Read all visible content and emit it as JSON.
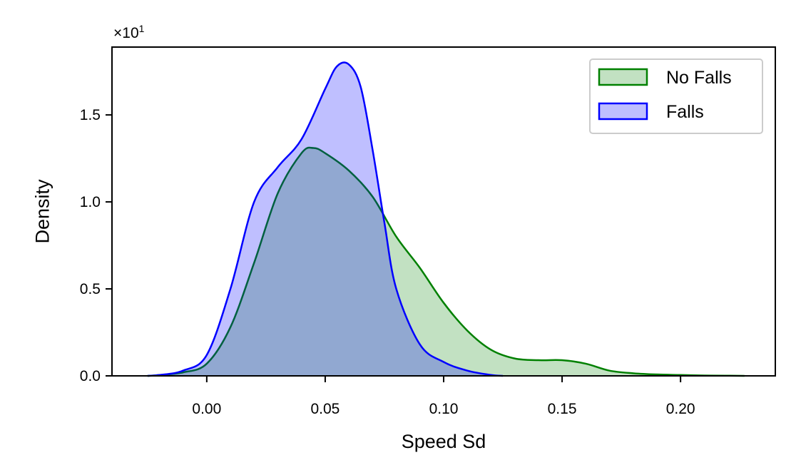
{
  "chart_data": {
    "type": "area",
    "xlabel": "Speed Sd",
    "ylabel": "Density",
    "y_offset_label": "×10",
    "y_offset_exponent": "1",
    "xlim": [
      -0.04,
      0.24
    ],
    "ylim": [
      0,
      1.89
    ],
    "x_ticks": [
      0.0,
      0.05,
      0.1,
      0.15,
      0.2
    ],
    "x_tick_labels": [
      "0.00",
      "0.05",
      "0.10",
      "0.15",
      "0.20"
    ],
    "y_ticks": [
      0.0,
      0.5,
      1.0,
      1.5
    ],
    "y_tick_labels": [
      "0.0",
      "0.5",
      "1.0",
      "1.5"
    ],
    "grid": false,
    "legend_position": "top-right",
    "series": [
      {
        "name": "No Falls",
        "color": "#008000",
        "fill": "rgba(0,128,0,0.24)",
        "x": [
          -0.025,
          -0.02,
          -0.01,
          0.0,
          0.01,
          0.02,
          0.03,
          0.04,
          0.045,
          0.05,
          0.06,
          0.07,
          0.08,
          0.09,
          0.1,
          0.11,
          0.12,
          0.13,
          0.14,
          0.15,
          0.16,
          0.17,
          0.18,
          0.19,
          0.2,
          0.21,
          0.22,
          0.227
        ],
        "y": [
          0.0,
          0.005,
          0.02,
          0.07,
          0.28,
          0.65,
          1.05,
          1.28,
          1.31,
          1.28,
          1.18,
          1.03,
          0.8,
          0.62,
          0.42,
          0.26,
          0.15,
          0.1,
          0.09,
          0.09,
          0.07,
          0.03,
          0.015,
          0.008,
          0.005,
          0.002,
          0.001,
          0.0
        ]
      },
      {
        "name": "Falls",
        "color": "#0000ff",
        "fill": "rgba(0,0,255,0.25)",
        "x": [
          -0.025,
          -0.02,
          -0.01,
          0.0,
          0.01,
          0.02,
          0.03,
          0.04,
          0.05,
          0.055,
          0.06,
          0.065,
          0.07,
          0.075,
          0.08,
          0.09,
          0.1,
          0.11,
          0.12,
          0.125
        ],
        "y": [
          0.0,
          0.005,
          0.03,
          0.12,
          0.5,
          1.0,
          1.2,
          1.36,
          1.65,
          1.78,
          1.79,
          1.66,
          1.3,
          0.88,
          0.5,
          0.18,
          0.08,
          0.03,
          0.005,
          0.0
        ]
      }
    ]
  }
}
